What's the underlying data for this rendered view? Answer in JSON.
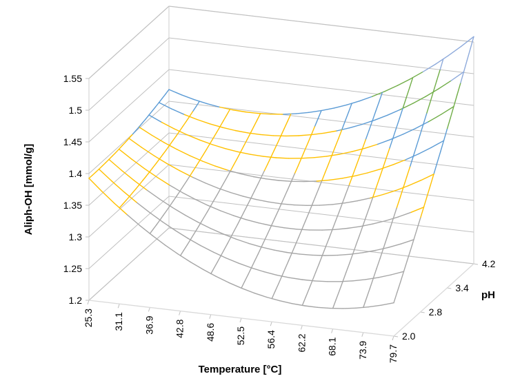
{
  "chart_data": {
    "type": "surface",
    "title": "",
    "xlabel": "Temperature [°C]",
    "ylabel": "pH",
    "zlabel": "Aliph-OH [mmol/g]",
    "x_ticks": [
      "25.3",
      "31.1",
      "36.9",
      "42.8",
      "48.6",
      "52.5",
      "56.4",
      "62.2",
      "68.1",
      "73.9",
      "79.7"
    ],
    "y_ticks": [
      "2.0",
      "2.8",
      "3.4",
      "4.2"
    ],
    "z_ticks": [
      "1.2",
      "1.25",
      "1.3",
      "1.35",
      "1.4",
      "1.45",
      "1.5",
      "1.55"
    ],
    "zlim": [
      1.2,
      1.55
    ],
    "grid": true,
    "color_bands": [
      {
        "range": [
          1.3,
          1.35
        ],
        "color": "#a6a6a6"
      },
      {
        "range": [
          1.35,
          1.4
        ],
        "color": "#ffc000"
      },
      {
        "range": [
          1.4,
          1.45
        ],
        "color": "#5b9bd5"
      },
      {
        "range": [
          1.45,
          1.5
        ],
        "color": "#70ad47"
      },
      {
        "range": [
          1.5,
          1.55
        ],
        "color": "#8eaadb"
      }
    ],
    "surface_model": {
      "x_range": [
        25.3,
        79.7
      ],
      "y_range": [
        2.0,
        4.2
      ],
      "intercept": 1.3235,
      "u": 0.0,
      "v": 0.083,
      "u2": 0.075,
      "v2": 0.007,
      "uv": 0.07
    }
  }
}
